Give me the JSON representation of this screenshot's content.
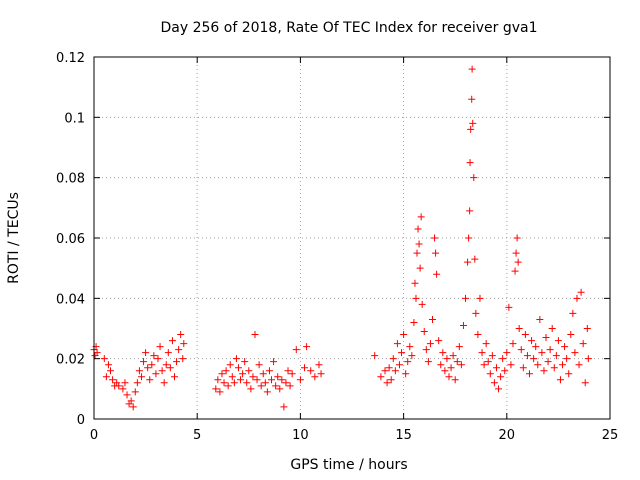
{
  "chart_data": {
    "type": "scatter",
    "title": "Day 256 of 2018, Rate Of TEC Index for receiver gva1",
    "xlabel": "GPS time / hours",
    "ylabel": "ROTI / TECUs",
    "xlim": [
      0,
      25
    ],
    "ylim": [
      0,
      0.12
    ],
    "x_ticks": [
      0,
      5,
      10,
      15,
      20,
      25
    ],
    "y_ticks": [
      0,
      0.02,
      0.04,
      0.06,
      0.08,
      0.1,
      0.12
    ],
    "x_tick_labels": [
      "0",
      "5",
      "10",
      "15",
      "20",
      "25"
    ],
    "y_tick_labels": [
      "0",
      "0.02",
      "0.04",
      "0.06",
      "0.08",
      "0.1",
      "0.12"
    ],
    "grid": true,
    "marker": "plus",
    "color": "#ff0000",
    "series": [
      {
        "points": [
          [
            0.0,
            0.023
          ],
          [
            0.05,
            0.021
          ],
          [
            0.1,
            0.024
          ],
          [
            0.15,
            0.022
          ],
          [
            0.5,
            0.02
          ],
          [
            0.6,
            0.014
          ],
          [
            0.7,
            0.018
          ],
          [
            0.8,
            0.016
          ],
          [
            0.9,
            0.013
          ],
          [
            1.0,
            0.011
          ],
          [
            1.1,
            0.012
          ],
          [
            1.2,
            0.011
          ],
          [
            1.4,
            0.01
          ],
          [
            1.5,
            0.012
          ],
          [
            1.6,
            0.008
          ],
          [
            1.7,
            0.005
          ],
          [
            1.8,
            0.006
          ],
          [
            1.9,
            0.004
          ],
          [
            2.0,
            0.009
          ],
          [
            2.1,
            0.012
          ],
          [
            2.2,
            0.016
          ],
          [
            2.3,
            0.014
          ],
          [
            2.4,
            0.019
          ],
          [
            2.5,
            0.022
          ],
          [
            2.6,
            0.017
          ],
          [
            2.7,
            0.013
          ],
          [
            2.8,
            0.018
          ],
          [
            2.9,
            0.021
          ],
          [
            3.0,
            0.015
          ],
          [
            3.1,
            0.02
          ],
          [
            3.2,
            0.024
          ],
          [
            3.3,
            0.016
          ],
          [
            3.4,
            0.012
          ],
          [
            3.5,
            0.018
          ],
          [
            3.6,
            0.022
          ],
          [
            3.7,
            0.017
          ],
          [
            3.8,
            0.026
          ],
          [
            3.9,
            0.014
          ],
          [
            4.0,
            0.019
          ],
          [
            4.1,
            0.023
          ],
          [
            4.2,
            0.028
          ],
          [
            4.3,
            0.02
          ],
          [
            4.35,
            0.025
          ],
          [
            5.9,
            0.01
          ],
          [
            6.0,
            0.013
          ],
          [
            6.1,
            0.009
          ],
          [
            6.2,
            0.015
          ],
          [
            6.3,
            0.012
          ],
          [
            6.4,
            0.016
          ],
          [
            6.5,
            0.011
          ],
          [
            6.6,
            0.018
          ],
          [
            6.7,
            0.014
          ],
          [
            6.8,
            0.012
          ],
          [
            6.9,
            0.02
          ],
          [
            7.0,
            0.017
          ],
          [
            7.1,
            0.013
          ],
          [
            7.2,
            0.015
          ],
          [
            7.3,
            0.019
          ],
          [
            7.4,
            0.012
          ],
          [
            7.5,
            0.016
          ],
          [
            7.6,
            0.01
          ],
          [
            7.7,
            0.014
          ],
          [
            7.8,
            0.028
          ],
          [
            7.9,
            0.013
          ],
          [
            8.0,
            0.018
          ],
          [
            8.1,
            0.011
          ],
          [
            8.2,
            0.015
          ],
          [
            8.3,
            0.012
          ],
          [
            8.4,
            0.009
          ],
          [
            8.5,
            0.016
          ],
          [
            8.6,
            0.013
          ],
          [
            8.7,
            0.019
          ],
          [
            8.8,
            0.011
          ],
          [
            8.9,
            0.014
          ],
          [
            9.0,
            0.01
          ],
          [
            9.1,
            0.013
          ],
          [
            9.2,
            0.004
          ],
          [
            9.3,
            0.012
          ],
          [
            9.4,
            0.016
          ],
          [
            9.5,
            0.011
          ],
          [
            9.6,
            0.015
          ],
          [
            9.8,
            0.023
          ],
          [
            10.0,
            0.013
          ],
          [
            10.2,
            0.017
          ],
          [
            10.3,
            0.024
          ],
          [
            10.5,
            0.016
          ],
          [
            10.7,
            0.014
          ],
          [
            10.9,
            0.018
          ],
          [
            11.0,
            0.015
          ],
          [
            13.6,
            0.021
          ],
          [
            13.9,
            0.014
          ],
          [
            14.1,
            0.016
          ],
          [
            14.2,
            0.012
          ],
          [
            14.3,
            0.017
          ],
          [
            14.4,
            0.013
          ],
          [
            14.5,
            0.02
          ],
          [
            14.6,
            0.016
          ],
          [
            14.7,
            0.025
          ],
          [
            14.8,
            0.018
          ],
          [
            14.9,
            0.022
          ],
          [
            15.0,
            0.028
          ],
          [
            15.1,
            0.015
          ],
          [
            15.2,
            0.019
          ],
          [
            15.3,
            0.024
          ],
          [
            15.4,
            0.021
          ],
          [
            15.5,
            0.032
          ],
          [
            15.55,
            0.045
          ],
          [
            15.6,
            0.04
          ],
          [
            15.65,
            0.055
          ],
          [
            15.7,
            0.063
          ],
          [
            15.75,
            0.058
          ],
          [
            15.8,
            0.05
          ],
          [
            15.85,
            0.067
          ],
          [
            15.9,
            0.038
          ],
          [
            16.0,
            0.029
          ],
          [
            16.1,
            0.023
          ],
          [
            16.2,
            0.019
          ],
          [
            16.3,
            0.025
          ],
          [
            16.4,
            0.033
          ],
          [
            16.5,
            0.06
          ],
          [
            16.55,
            0.055
          ],
          [
            16.6,
            0.048
          ],
          [
            16.7,
            0.026
          ],
          [
            16.8,
            0.018
          ],
          [
            16.9,
            0.022
          ],
          [
            17.0,
            0.016
          ],
          [
            17.1,
            0.02
          ],
          [
            17.2,
            0.014
          ],
          [
            17.3,
            0.017
          ],
          [
            17.4,
            0.021
          ],
          [
            17.5,
            0.013
          ],
          [
            17.6,
            0.019
          ],
          [
            17.7,
            0.024
          ],
          [
            17.8,
            0.018
          ],
          [
            17.9,
            0.031
          ],
          [
            18.0,
            0.04
          ],
          [
            18.1,
            0.052
          ],
          [
            18.15,
            0.06
          ],
          [
            18.2,
            0.069
          ],
          [
            18.22,
            0.085
          ],
          [
            18.25,
            0.096
          ],
          [
            18.3,
            0.106
          ],
          [
            18.32,
            0.116
          ],
          [
            18.35,
            0.098
          ],
          [
            18.4,
            0.08
          ],
          [
            18.45,
            0.053
          ],
          [
            18.5,
            0.035
          ],
          [
            18.6,
            0.028
          ],
          [
            18.7,
            0.04
          ],
          [
            18.8,
            0.022
          ],
          [
            18.9,
            0.018
          ],
          [
            19.0,
            0.025
          ],
          [
            19.1,
            0.019
          ],
          [
            19.2,
            0.015
          ],
          [
            19.3,
            0.021
          ],
          [
            19.4,
            0.012
          ],
          [
            19.5,
            0.017
          ],
          [
            19.6,
            0.01
          ],
          [
            19.7,
            0.014
          ],
          [
            19.8,
            0.02
          ],
          [
            19.9,
            0.016
          ],
          [
            20.0,
            0.022
          ],
          [
            20.1,
            0.037
          ],
          [
            20.2,
            0.018
          ],
          [
            20.3,
            0.025
          ],
          [
            20.4,
            0.049
          ],
          [
            20.45,
            0.055
          ],
          [
            20.5,
            0.06
          ],
          [
            20.55,
            0.052
          ],
          [
            20.6,
            0.03
          ],
          [
            20.7,
            0.023
          ],
          [
            20.8,
            0.017
          ],
          [
            20.9,
            0.028
          ],
          [
            21.0,
            0.021
          ],
          [
            21.1,
            0.015
          ],
          [
            21.2,
            0.026
          ],
          [
            21.3,
            0.02
          ],
          [
            21.4,
            0.024
          ],
          [
            21.5,
            0.018
          ],
          [
            21.6,
            0.033
          ],
          [
            21.7,
            0.022
          ],
          [
            21.8,
            0.016
          ],
          [
            21.9,
            0.027
          ],
          [
            22.0,
            0.019
          ],
          [
            22.1,
            0.023
          ],
          [
            22.2,
            0.03
          ],
          [
            22.3,
            0.017
          ],
          [
            22.4,
            0.021
          ],
          [
            22.5,
            0.026
          ],
          [
            22.6,
            0.013
          ],
          [
            22.7,
            0.018
          ],
          [
            22.8,
            0.024
          ],
          [
            22.9,
            0.02
          ],
          [
            23.0,
            0.015
          ],
          [
            23.1,
            0.028
          ],
          [
            23.2,
            0.035
          ],
          [
            23.3,
            0.022
          ],
          [
            23.4,
            0.04
          ],
          [
            23.5,
            0.018
          ],
          [
            23.6,
            0.042
          ],
          [
            23.7,
            0.025
          ],
          [
            23.8,
            0.012
          ],
          [
            23.9,
            0.03
          ],
          [
            23.95,
            0.02
          ]
        ]
      }
    ]
  }
}
